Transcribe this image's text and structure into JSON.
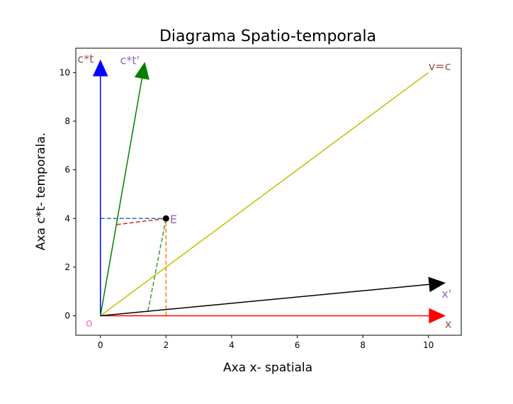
{
  "chart_data": {
    "type": "line",
    "title": "Diagrama Spatio-temporala",
    "xlabel": "Axa x- spatiala",
    "ylabel": "Axa c*t- temporala.",
    "xlim": [
      -0.75,
      11.0
    ],
    "ylim": [
      -0.8,
      11.0
    ],
    "xticks": [
      0,
      2,
      4,
      6,
      8,
      10
    ],
    "yticks": [
      0,
      2,
      4,
      6,
      8,
      10
    ],
    "grid": false,
    "arrows": [
      {
        "label": "x",
        "from": [
          0,
          0
        ],
        "to": [
          10.5,
          0
        ],
        "color": "#ff0000"
      },
      {
        "label": "c*t",
        "from": [
          0,
          0
        ],
        "to": [
          0,
          10.5
        ],
        "color": "#0000ff"
      },
      {
        "label": "x'",
        "from": [
          0,
          0
        ],
        "to": [
          10.5,
          1.35
        ],
        "color": "#000000"
      },
      {
        "label": "c*t'",
        "from": [
          0,
          0
        ],
        "to": [
          1.35,
          10.4
        ],
        "color": "#008000"
      }
    ],
    "lines": [
      {
        "label": "v=c",
        "x": [
          0,
          10
        ],
        "y": [
          0,
          10
        ],
        "color": "#bfbf00",
        "dashed": false
      }
    ],
    "dashed_lines": [
      {
        "x": [
          0,
          2
        ],
        "y": [
          4,
          4
        ],
        "color": "#1f77b4"
      },
      {
        "x": [
          2,
          2
        ],
        "y": [
          0,
          4
        ],
        "color": "#ff7f0e"
      },
      {
        "x": [
          1.45,
          2
        ],
        "y": [
          0.2,
          4
        ],
        "color": "#2ca02c"
      },
      {
        "x": [
          0.5,
          2
        ],
        "y": [
          3.75,
          4
        ],
        "color": "#d62728"
      }
    ],
    "points": [
      {
        "label": "E",
        "x": 2,
        "y": 4,
        "color": "#000000"
      }
    ],
    "annotations": [
      {
        "text": "o",
        "x": -0.45,
        "y": -0.45,
        "color": "#e377c2"
      },
      {
        "text": "x",
        "x": 10.5,
        "y": -0.5,
        "color": "#8c564b"
      },
      {
        "text": "x'",
        "x": 10.4,
        "y": 0.75,
        "color": "#9467bd"
      },
      {
        "text": "c*t",
        "x": -0.7,
        "y": 10.4,
        "color": "#8c564b"
      },
      {
        "text": "c*t'",
        "x": 0.6,
        "y": 10.35,
        "color": "#9467bd"
      },
      {
        "text": "v=c",
        "x": 10.0,
        "y": 10.1,
        "color": "#8c564b"
      },
      {
        "text": "E",
        "x": 2.12,
        "y": 3.8,
        "color": "#9467bd"
      }
    ]
  }
}
